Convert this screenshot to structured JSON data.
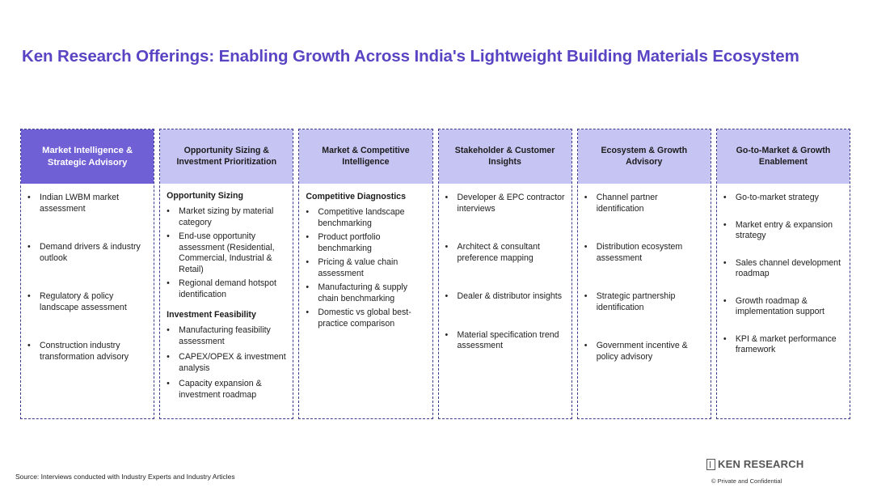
{
  "title": "Ken Research Offerings: Enabling Growth Across India's Lightweight Building Materials Ecosystem",
  "columns": [
    {
      "header": "Market Intelligence & Strategic Advisory",
      "items": [
        "Indian LWBM market assessment",
        "Demand drivers & industry outlook",
        "Regulatory & policy landscape assessment",
        "Construction industry transformation advisory"
      ]
    },
    {
      "header": "Opportunity Sizing & Investment Prioritization",
      "sections": [
        {
          "heading": "Opportunity Sizing",
          "items": [
            "Market sizing by material category",
            "End-use opportunity assessment (Residential, Commercial, Industrial & Retail)",
            "Regional demand hotspot identification"
          ]
        },
        {
          "heading": "Investment Feasibility",
          "items": [
            "Manufacturing feasibility assessment",
            "CAPEX/OPEX & investment analysis",
            "Capacity expansion & investment roadmap"
          ]
        }
      ]
    },
    {
      "header": "Market & Competitive Intelligence",
      "sections": [
        {
          "heading": "Competitive Diagnostics",
          "items": [
            "Competitive landscape benchmarking",
            "Product portfolio benchmarking",
            "Pricing & value chain assessment",
            "Manufacturing & supply chain benchmarking",
            "Domestic vs global best-practice comparison"
          ]
        }
      ]
    },
    {
      "header": "Stakeholder & Customer Insights",
      "items": [
        "Developer & EPC contractor interviews",
        "Architect & consultant preference mapping",
        "Dealer & distributor insights",
        "Material specification trend assessment"
      ]
    },
    {
      "header": "Ecosystem & Growth Advisory",
      "items": [
        "Channel partner identification",
        "Distribution ecosystem assessment",
        "Strategic partnership identification",
        "Government incentive & policy advisory"
      ]
    },
    {
      "header": "Go-to-Market & Growth Enablement",
      "items": [
        "Go-to-market strategy",
        "Market entry & expansion strategy",
        "Sales channel development roadmap",
        "Growth roadmap & implementation support",
        "KPI & market performance framework"
      ]
    }
  ],
  "source": "Source: Interviews conducted with Industry Experts and Industry Articles",
  "logo_text": "KEN RESEARCH",
  "confidential": "© Private and Confidential"
}
